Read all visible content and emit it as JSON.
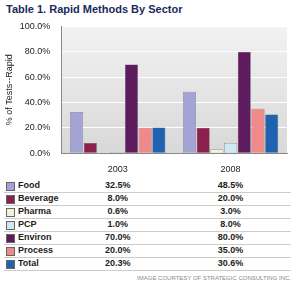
{
  "chart_data": {
    "type": "bar",
    "title": "Table 1. Rapid Methods By Sector",
    "y_label": "% of Tests--Rapid",
    "caption": "IMAGE COURTESY OF STRATEGIC CONSULTING INC.",
    "categories": [
      "2003",
      "2008"
    ],
    "series": [
      {
        "name": "Food",
        "color": "#a3a3d6",
        "values": [
          32.5,
          48.5
        ],
        "value_labels": [
          "32.5%",
          "48.5%"
        ]
      },
      {
        "name": "Beverage",
        "color": "#8b1f4e",
        "values": [
          8.0,
          20.0
        ],
        "value_labels": [
          "8.0%",
          "20.0%"
        ]
      },
      {
        "name": "Pharma",
        "color": "#f4f2d8",
        "values": [
          0.6,
          3.0
        ],
        "value_labels": [
          "0.6%",
          "3.0%"
        ]
      },
      {
        "name": "PCP",
        "color": "#cfe9f2",
        "values": [
          1.0,
          8.0
        ],
        "value_labels": [
          "1.0%",
          "8.0%"
        ]
      },
      {
        "name": "Environ",
        "color": "#5e1b5e",
        "values": [
          70.0,
          80.0
        ],
        "value_labels": [
          "70.0%",
          "80.0%"
        ]
      },
      {
        "name": "Process",
        "color": "#f08a8a",
        "values": [
          20.0,
          35.0
        ],
        "value_labels": [
          "20.0%",
          "35.0%"
        ]
      },
      {
        "name": "Total",
        "color": "#1f63b0",
        "values": [
          20.3,
          30.6
        ],
        "value_labels": [
          "20.3%",
          "30.6%"
        ]
      }
    ],
    "ylim": [
      0,
      100
    ],
    "yticks": [
      {
        "value": 0,
        "label": "0.0%"
      },
      {
        "value": 20,
        "label": "20.0%"
      },
      {
        "value": 40,
        "label": "40.0%"
      },
      {
        "value": 60,
        "label": "60.0%"
      },
      {
        "value": 80,
        "label": "80.0%"
      },
      {
        "value": 100,
        "label": "100.0%"
      }
    ],
    "grid": true,
    "legend": "bottom"
  }
}
